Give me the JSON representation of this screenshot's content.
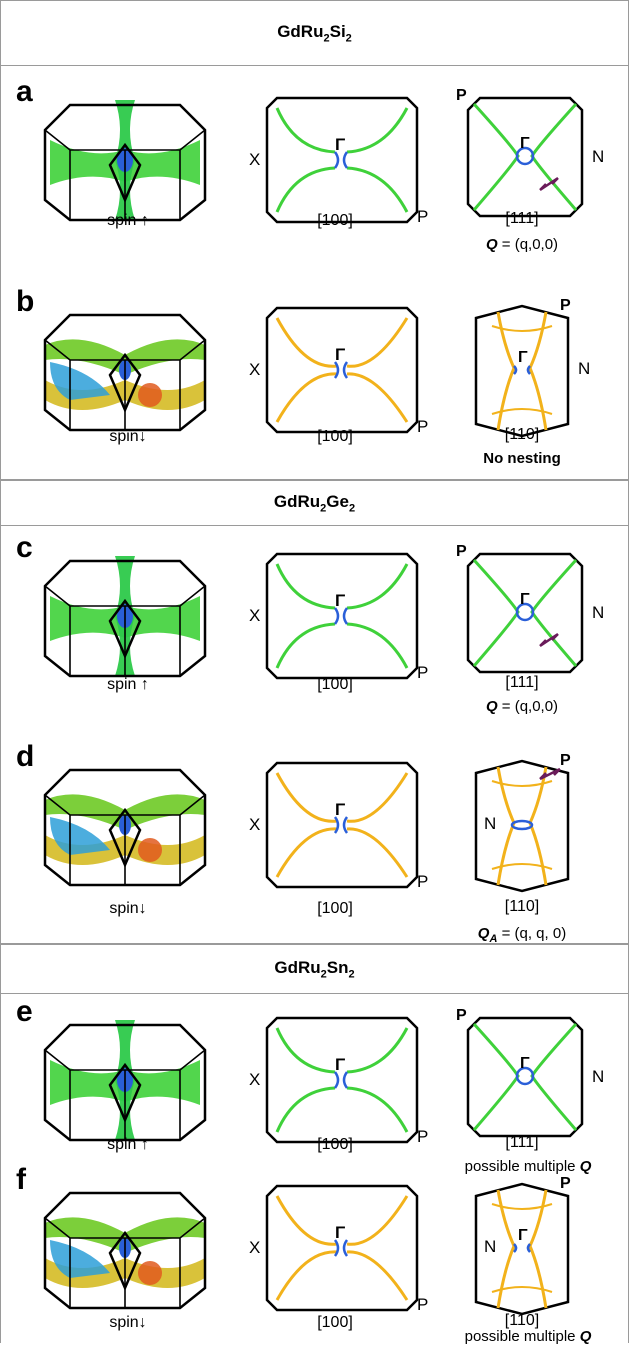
{
  "materials": [
    {
      "formula": "GdRu",
      "sub1": "2",
      "mid": "Si",
      "sub2": "2"
    },
    {
      "formula": "GdRu",
      "sub1": "2",
      "mid": "Ge",
      "sub2": "2"
    },
    {
      "formula": "GdRu",
      "sub1": "2",
      "mid": "Sn",
      "sub2": "2"
    }
  ],
  "panels": [
    {
      "letter": "a",
      "spin": "spin ↑",
      "mid_label": "[100]",
      "right_label": "[111]",
      "note_prefix": "Q",
      "note_sub": "",
      "note_rest": " = (q,0,0)",
      "sec": "P",
      "mid_left": "X",
      "mid_center": "Γ",
      "mid_bottom": "P",
      "right_top": "P",
      "right_side": "N",
      "right_center": "Γ"
    },
    {
      "letter": "b",
      "spin": "spin↓",
      "mid_label": "[100]",
      "right_label": "[110]",
      "note_text": "No nesting",
      "mid_left": "X",
      "mid_center": "Γ",
      "mid_bottom": "P",
      "right_top": "P",
      "right_side": "N",
      "right_center": "Γ"
    },
    {
      "letter": "c",
      "spin": "spin ↑",
      "mid_label": "[100]",
      "right_label": "[111]",
      "note_prefix": "Q",
      "note_sub": "",
      "note_rest": " = (q,0,0)",
      "mid_left": "X",
      "mid_center": "Γ",
      "mid_bottom": "P",
      "right_top": "P",
      "right_side": "N",
      "right_center": "Γ"
    },
    {
      "letter": "d",
      "spin": "spin↓",
      "mid_label": "[100]",
      "right_label": "[110]",
      "note_prefix": "Q",
      "note_sub": "A",
      "note_rest": " = (q, q, 0)",
      "mid_left": "X",
      "mid_center": "Γ",
      "mid_bottom": "P",
      "right_top": "P",
      "right_side": "N",
      "right_center": ""
    },
    {
      "letter": "e",
      "spin": "spin ↑",
      "mid_label": "[100]",
      "right_label": "[111]",
      "note_plain": "possible multiple ",
      "note_q": "Q",
      "mid_left": "X",
      "mid_center": "Γ",
      "mid_bottom": "P",
      "right_top": "P",
      "right_side": "N",
      "right_center": "Γ"
    },
    {
      "letter": "f",
      "spin": "spin↓",
      "mid_label": "[100]",
      "right_label": "[110]",
      "note_plain": "possible multiple ",
      "note_q": "Q",
      "mid_left": "X",
      "mid_center": "Γ",
      "mid_bottom": "P",
      "right_top": "P",
      "right_side": "N",
      "right_center": "Γ"
    }
  ],
  "colors": {
    "frame": "#000000",
    "contour_up": "#3fd13a",
    "contour_down": "#f2b21b",
    "gamma_blue": "#2a5fd8",
    "arrow": "#6a1b5a",
    "border": "#9a9a9a"
  }
}
